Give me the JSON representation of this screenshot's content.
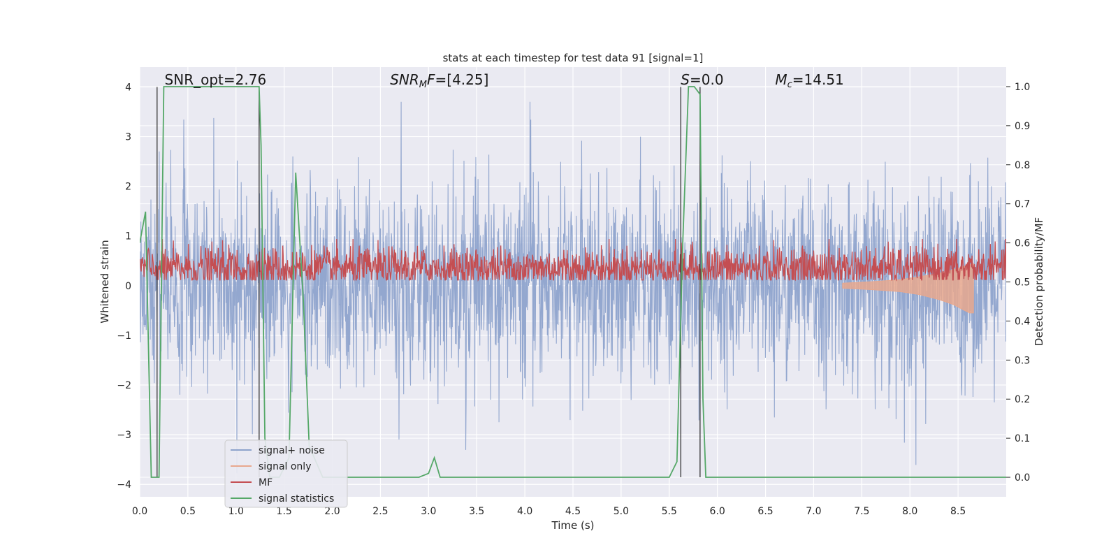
{
  "chart_data": {
    "type": "line",
    "title": "stats at each timestep for test data 91 [signal=1]",
    "xlabel": "Time (s)",
    "ylabel_left": "Whitened strain",
    "ylabel_right": "Detection probability/MF",
    "xlim": [
      0.0,
      9.0
    ],
    "ylim_left": [
      -4.25,
      4.4
    ],
    "ylim_right": [
      -0.05,
      1.05
    ],
    "x_ticks": [
      0.0,
      0.5,
      1.0,
      1.5,
      2.0,
      2.5,
      3.0,
      3.5,
      4.0,
      4.5,
      5.0,
      5.5,
      6.0,
      6.5,
      7.0,
      7.5,
      8.0,
      8.5
    ],
    "x_tick_labels": [
      "0.0",
      "0.5",
      "1.0",
      "1.5",
      "2.0",
      "2.5",
      "3.0",
      "3.5",
      "4.0",
      "4.5",
      "5.0",
      "5.5",
      "6.0",
      "6.5",
      "7.0",
      "7.5",
      "8.0",
      "8.5"
    ],
    "y_left_ticks": [
      -4,
      -3,
      -2,
      -1,
      0,
      1,
      2,
      3,
      4
    ],
    "y_left_tick_labels": [
      "−4",
      "−3",
      "−2",
      "−1",
      "0",
      "1",
      "2",
      "3",
      "4"
    ],
    "y_right_ticks": [
      0.0,
      0.1,
      0.2,
      0.3,
      0.4,
      0.5,
      0.6,
      0.7,
      0.8,
      0.9,
      1.0
    ],
    "y_right_tick_labels": [
      "0.0",
      "0.1",
      "0.2",
      "0.3",
      "0.4",
      "0.5",
      "0.6",
      "0.7",
      "0.8",
      "0.9",
      "1.0"
    ],
    "grid": true,
    "legend_position": "lower-left",
    "annotations": [
      {
        "text_main": "SNR_opt=2.76",
        "x": 0.2
      },
      {
        "prefix": "SNR",
        "sub": "M",
        "suffix": "F=[4.25]",
        "x": 2.6
      },
      {
        "prefix": "S",
        "suffix": "=0.0",
        "x": 5.62
      },
      {
        "prefix": "M",
        "sub": "c",
        "suffix": "=14.51",
        "x": 6.6
      }
    ],
    "vertical_lines_x": [
      0.18,
      1.24,
      5.62,
      5.82
    ],
    "series": [
      {
        "name": "signal+ noise",
        "color": "#8ea3cc",
        "axis": "left",
        "noise_amplitude": 2.0,
        "noise_x_range": [
          0.0,
          9.0
        ]
      },
      {
        "name": "signal only",
        "color": "#e8a88e",
        "axis": "left",
        "x": [
          7.3,
          7.6,
          7.9,
          8.1,
          8.3,
          8.45,
          8.55,
          8.62,
          8.66
        ],
        "y_upper": [
          0.05,
          0.08,
          0.12,
          0.18,
          0.25,
          0.32,
          0.38,
          0.42,
          0.45
        ],
        "y_lower": [
          -0.05,
          -0.08,
          -0.12,
          -0.18,
          -0.28,
          -0.38,
          -0.48,
          -0.55,
          -0.55
        ]
      },
      {
        "name": "MF",
        "color": "#c44e52",
        "axis": "right",
        "mean": 0.535,
        "amplitude": 0.05,
        "x_range": [
          0.0,
          9.0
        ]
      },
      {
        "name": "signal statistics",
        "color": "#55a868",
        "axis": "right",
        "x": [
          0.0,
          0.06,
          0.12,
          0.2,
          0.25,
          1.0,
          1.24,
          1.26,
          1.3,
          1.35,
          1.45,
          1.55,
          1.62,
          1.7,
          1.76,
          1.9,
          2.3,
          2.9,
          3.0,
          3.06,
          3.12,
          5.5,
          5.58,
          5.64,
          5.7,
          5.76,
          5.82,
          5.85,
          5.88,
          9.0
        ],
        "y": [
          0.6,
          0.68,
          0.0,
          0.0,
          1.0,
          1.0,
          1.0,
          0.85,
          0.1,
          0.0,
          0.0,
          0.05,
          0.78,
          0.45,
          0.08,
          0.0,
          0.0,
          0.0,
          0.01,
          0.05,
          0.0,
          0.0,
          0.04,
          0.6,
          1.0,
          1.0,
          0.98,
          0.2,
          0.0,
          0.0
        ]
      }
    ]
  }
}
